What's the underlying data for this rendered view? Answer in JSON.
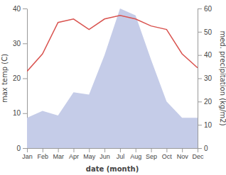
{
  "chart_data": {
    "type": "line",
    "xlabel": "date (month)",
    "ylabel": "max temp (C)",
    "y2label": "med. precipitation (kg/m2)",
    "categories": [
      "Jan",
      "Feb",
      "Mar",
      "Apr",
      "May",
      "Jun",
      "Jul",
      "Aug",
      "Sep",
      "Oct",
      "Nov",
      "Dec"
    ],
    "series": [
      {
        "type": "area",
        "axis": "y2",
        "color": "#c5cce8",
        "values": [
          13,
          16,
          14,
          24,
          23,
          40,
          60,
          57,
          38,
          20,
          13,
          13
        ]
      },
      {
        "type": "line",
        "color": "#d9534f",
        "values": [
          22,
          27,
          36,
          37,
          34,
          37,
          38,
          37,
          35,
          34,
          27,
          23
        ]
      }
    ],
    "ylim": [
      0,
      40
    ],
    "yticks": [
      0,
      10,
      20,
      30,
      40
    ],
    "y2lim": [
      0,
      60
    ],
    "y2ticks": [
      0,
      10,
      20,
      30,
      40,
      50,
      60
    ],
    "grid": false
  }
}
